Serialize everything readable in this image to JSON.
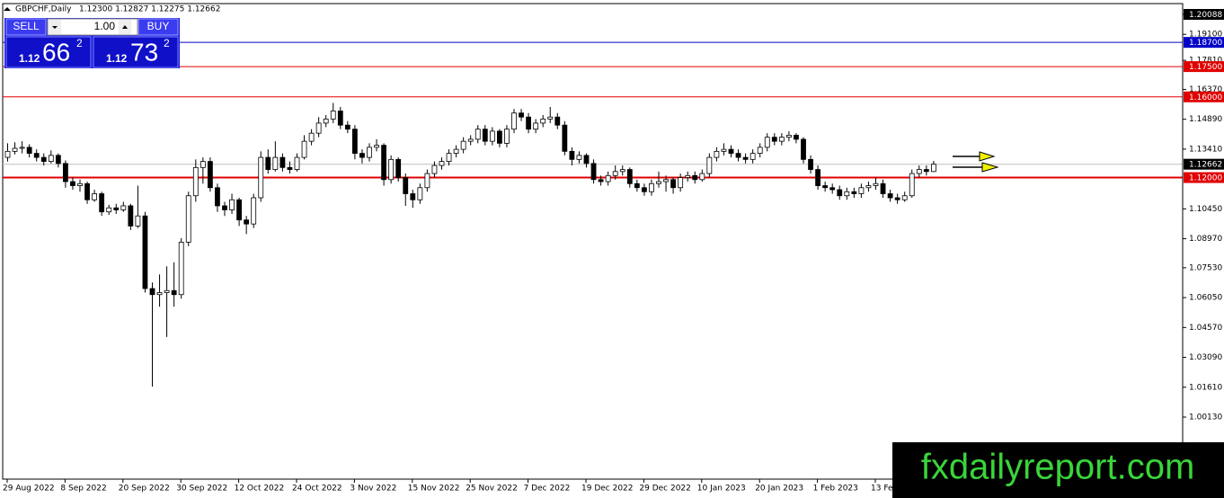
{
  "chart_data": {
    "type": "candlestick",
    "header": {
      "symbol": "GBPCHF,Daily",
      "ohlc_text": "1.12300 1.12827 1.12275 1.12662"
    },
    "trade_panel": {
      "sell": "SELL",
      "lot": "1.00",
      "buy": "BUY",
      "bid": {
        "prefix": "1.12",
        "big": "66",
        "sup": "2"
      },
      "ask": {
        "prefix": "1.12",
        "big": "73",
        "sup": "2"
      }
    },
    "watermark": "fxdailyreport.com",
    "ylim": [
      0.971,
      1.20088
    ],
    "yticks": [
      {
        "value": 1.20088,
        "label": "1.20088"
      },
      {
        "value": 1.191,
        "label": "1.19100"
      },
      {
        "value": 1.1781,
        "label": "1.17810"
      },
      {
        "value": 1.1637,
        "label": "1.16370"
      },
      {
        "value": 1.1489,
        "label": "1.14890"
      },
      {
        "value": 1.1341,
        "label": "1.13410"
      },
      {
        "value": 1.1045,
        "label": "1.10450"
      },
      {
        "value": 1.0897,
        "label": "1.08970"
      },
      {
        "value": 1.0753,
        "label": "1.07530"
      },
      {
        "value": 1.0605,
        "label": "1.06050"
      },
      {
        "value": 1.0457,
        "label": "1.04570"
      },
      {
        "value": 1.0309,
        "label": "1.03090"
      },
      {
        "value": 1.0161,
        "label": "1.01610"
      },
      {
        "value": 1.0013,
        "label": "1.00130"
      }
    ],
    "levels": [
      {
        "value": 1.187,
        "label": "1.18700",
        "color": "#0000c8"
      },
      {
        "value": 1.175,
        "label": "1.17500",
        "color": "#e00000"
      },
      {
        "value": 1.16,
        "label": "1.16000",
        "color": "#e00000"
      },
      {
        "value": 1.12,
        "label": "1.12000",
        "color": "#e00000"
      }
    ],
    "current_price": {
      "value": 1.12662,
      "label": "1.12662",
      "color": "#c0c0c0"
    },
    "bull_color": "#ffffff",
    "bear_color": "#000000",
    "x_labels": [
      "29 Aug 2022",
      "8 Sep 2022",
      "20 Sep 2022",
      "30 Sep 2022",
      "12 Oct 2022",
      "24 Oct 2022",
      "3 Nov 2022",
      "15 Nov 2022",
      "25 Nov 2022",
      "7 Dec 2022",
      "19 Dec 2022",
      "29 Dec 2022",
      "10 Jan 2023",
      "20 Jan 2023",
      "1 Feb 2023",
      "13 Feb 2023"
    ],
    "candles": [
      [
        1.13,
        1.137,
        1.128,
        1.133
      ],
      [
        1.133,
        1.1375,
        1.1315,
        1.1345
      ],
      [
        1.1345,
        1.138,
        1.132,
        1.135
      ],
      [
        1.135,
        1.1365,
        1.13,
        1.132
      ],
      [
        1.132,
        1.134,
        1.128,
        1.13
      ],
      [
        1.13,
        1.132,
        1.126,
        1.128
      ],
      [
        1.128,
        1.1335,
        1.127,
        1.131
      ],
      [
        1.131,
        1.132,
        1.125,
        1.127
      ],
      [
        1.127,
        1.1285,
        1.115,
        1.118
      ],
      [
        1.118,
        1.12,
        1.114,
        1.116
      ],
      [
        1.116,
        1.119,
        1.113,
        1.117
      ],
      [
        1.117,
        1.118,
        1.107,
        1.109
      ],
      [
        1.109,
        1.114,
        1.108,
        1.112
      ],
      [
        1.112,
        1.113,
        1.101,
        1.103
      ],
      [
        1.103,
        1.1065,
        1.1015,
        1.105
      ],
      [
        1.105,
        1.107,
        1.102,
        1.104
      ],
      [
        1.104,
        1.108,
        1.103,
        1.106
      ],
      [
        1.106,
        1.107,
        1.094,
        1.096
      ],
      [
        1.096,
        1.116,
        1.095,
        1.101
      ],
      [
        1.101,
        1.103,
        1.063,
        1.065
      ],
      [
        1.065,
        1.068,
        1.0164,
        1.062
      ],
      [
        1.062,
        1.072,
        1.056,
        1.063
      ],
      [
        1.063,
        1.076,
        1.041,
        1.064
      ],
      [
        1.064,
        1.078,
        1.056,
        1.062
      ],
      [
        1.062,
        1.09,
        1.06,
        1.088
      ],
      [
        1.088,
        1.113,
        1.086,
        1.111
      ],
      [
        1.111,
        1.129,
        1.108,
        1.125
      ],
      [
        1.125,
        1.13,
        1.117,
        1.128
      ],
      [
        1.128,
        1.13,
        1.113,
        1.115
      ],
      [
        1.115,
        1.117,
        1.103,
        1.106
      ],
      [
        1.106,
        1.108,
        1.101,
        1.104
      ],
      [
        1.104,
        1.112,
        1.102,
        1.109
      ],
      [
        1.109,
        1.11,
        1.096,
        1.099
      ],
      [
        1.099,
        1.101,
        1.092,
        1.097
      ],
      [
        1.097,
        1.112,
        1.095,
        1.11
      ],
      [
        1.11,
        1.133,
        1.108,
        1.13
      ],
      [
        1.13,
        1.134,
        1.122,
        1.124
      ],
      [
        1.124,
        1.138,
        1.123,
        1.13
      ],
      [
        1.13,
        1.132,
        1.123,
        1.125
      ],
      [
        1.125,
        1.128,
        1.122,
        1.124
      ],
      [
        1.124,
        1.132,
        1.123,
        1.13
      ],
      [
        1.13,
        1.141,
        1.129,
        1.138
      ],
      [
        1.138,
        1.144,
        1.136,
        1.142
      ],
      [
        1.142,
        1.15,
        1.14,
        1.147
      ],
      [
        1.147,
        1.151,
        1.145,
        1.149
      ],
      [
        1.149,
        1.157,
        1.147,
        1.153
      ],
      [
        1.153,
        1.155,
        1.144,
        1.146
      ],
      [
        1.146,
        1.148,
        1.142,
        1.144
      ],
      [
        1.144,
        1.146,
        1.129,
        1.132
      ],
      [
        1.132,
        1.134,
        1.127,
        1.13
      ],
      [
        1.13,
        1.137,
        1.128,
        1.135
      ],
      [
        1.135,
        1.139,
        1.133,
        1.136
      ],
      [
        1.136,
        1.137,
        1.116,
        1.119
      ],
      [
        1.119,
        1.131,
        1.117,
        1.129
      ],
      [
        1.129,
        1.13,
        1.118,
        1.12
      ],
      [
        1.12,
        1.122,
        1.106,
        1.112
      ],
      [
        1.112,
        1.114,
        1.105,
        1.109
      ],
      [
        1.109,
        1.117,
        1.107,
        1.115
      ],
      [
        1.115,
        1.124,
        1.113,
        1.122
      ],
      [
        1.122,
        1.128,
        1.12,
        1.126
      ],
      [
        1.126,
        1.13,
        1.124,
        1.128
      ],
      [
        1.128,
        1.134,
        1.126,
        1.132
      ],
      [
        1.132,
        1.136,
        1.13,
        1.134
      ],
      [
        1.134,
        1.14,
        1.132,
        1.138
      ],
      [
        1.138,
        1.141,
        1.136,
        1.139
      ],
      [
        1.139,
        1.146,
        1.137,
        1.144
      ],
      [
        1.144,
        1.146,
        1.136,
        1.138
      ],
      [
        1.138,
        1.145,
        1.136,
        1.143
      ],
      [
        1.143,
        1.144,
        1.135,
        1.137
      ],
      [
        1.137,
        1.146,
        1.135,
        1.144
      ],
      [
        1.144,
        1.154,
        1.142,
        1.152
      ],
      [
        1.152,
        1.154,
        1.148,
        1.15
      ],
      [
        1.15,
        1.152,
        1.142,
        1.144
      ],
      [
        1.144,
        1.149,
        1.142,
        1.147
      ],
      [
        1.147,
        1.151,
        1.145,
        1.149
      ],
      [
        1.149,
        1.155,
        1.147,
        1.15
      ],
      [
        1.15,
        1.152,
        1.144,
        1.146
      ],
      [
        1.146,
        1.148,
        1.131,
        1.133
      ],
      [
        1.133,
        1.135,
        1.126,
        1.129
      ],
      [
        1.129,
        1.133,
        1.127,
        1.131
      ],
      [
        1.131,
        1.132,
        1.125,
        1.127
      ],
      [
        1.127,
        1.129,
        1.117,
        1.119
      ],
      [
        1.119,
        1.121,
        1.116,
        1.118
      ],
      [
        1.118,
        1.123,
        1.116,
        1.121
      ],
      [
        1.121,
        1.126,
        1.119,
        1.123
      ],
      [
        1.123,
        1.126,
        1.121,
        1.124
      ],
      [
        1.124,
        1.125,
        1.115,
        1.117
      ],
      [
        1.117,
        1.119,
        1.113,
        1.115
      ],
      [
        1.115,
        1.117,
        1.111,
        1.113
      ],
      [
        1.113,
        1.119,
        1.111,
        1.117
      ],
      [
        1.117,
        1.123,
        1.115,
        1.118
      ],
      [
        1.118,
        1.121,
        1.113,
        1.119
      ],
      [
        1.119,
        1.12,
        1.112,
        1.115
      ],
      [
        1.115,
        1.122,
        1.113,
        1.12
      ],
      [
        1.12,
        1.123,
        1.118,
        1.121
      ],
      [
        1.121,
        1.123,
        1.117,
        1.119
      ],
      [
        1.119,
        1.124,
        1.118,
        1.122
      ],
      [
        1.122,
        1.132,
        1.12,
        1.13
      ],
      [
        1.13,
        1.135,
        1.128,
        1.133
      ],
      [
        1.133,
        1.137,
        1.131,
        1.134
      ],
      [
        1.134,
        1.136,
        1.13,
        1.132
      ],
      [
        1.132,
        1.134,
        1.128,
        1.13
      ],
      [
        1.13,
        1.132,
        1.127,
        1.129
      ],
      [
        1.129,
        1.134,
        1.127,
        1.132
      ],
      [
        1.132,
        1.137,
        1.13,
        1.135
      ],
      [
        1.135,
        1.142,
        1.133,
        1.14
      ],
      [
        1.14,
        1.142,
        1.136,
        1.138
      ],
      [
        1.138,
        1.142,
        1.136,
        1.14
      ],
      [
        1.14,
        1.143,
        1.138,
        1.141
      ],
      [
        1.141,
        1.142,
        1.137,
        1.139
      ],
      [
        1.139,
        1.14,
        1.127,
        1.129
      ],
      [
        1.129,
        1.131,
        1.122,
        1.124
      ],
      [
        1.124,
        1.126,
        1.114,
        1.116
      ],
      [
        1.116,
        1.118,
        1.113,
        1.115
      ],
      [
        1.115,
        1.117,
        1.112,
        1.114
      ],
      [
        1.114,
        1.116,
        1.109,
        1.111
      ],
      [
        1.111,
        1.115,
        1.109,
        1.113
      ],
      [
        1.113,
        1.115,
        1.11,
        1.112
      ],
      [
        1.112,
        1.117,
        1.11,
        1.115
      ],
      [
        1.115,
        1.118,
        1.113,
        1.116
      ],
      [
        1.116,
        1.12,
        1.114,
        1.117
      ],
      [
        1.117,
        1.119,
        1.11,
        1.112
      ],
      [
        1.112,
        1.114,
        1.108,
        1.11
      ],
      [
        1.11,
        1.112,
        1.107,
        1.109
      ],
      [
        1.109,
        1.113,
        1.108,
        1.111
      ],
      [
        1.111,
        1.124,
        1.11,
        1.122
      ],
      [
        1.122,
        1.126,
        1.12,
        1.124
      ],
      [
        1.124,
        1.126,
        1.121,
        1.123
      ],
      [
        1.123,
        1.12827,
        1.12275,
        1.12662
      ]
    ]
  }
}
